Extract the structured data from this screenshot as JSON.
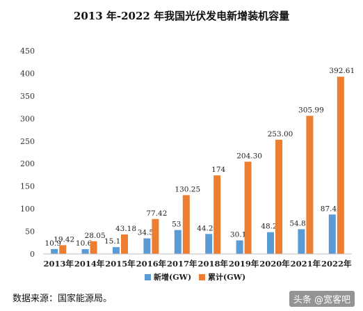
{
  "chart_data": {
    "type": "bar",
    "title": "2013 年-2022 年我国光伏发电新增装机容量",
    "categories": [
      "2013年",
      "2014年",
      "2015年",
      "2016年",
      "2017年",
      "2018年",
      "2019年",
      "2020年",
      "2021年",
      "2022年"
    ],
    "series": [
      {
        "name": "新增(GW)",
        "color": "#5B9BD5",
        "values": [
          10.9,
          10.6,
          15.13,
          34.5,
          53,
          44.26,
          30.1,
          48.2,
          54.88,
          87.41
        ],
        "labels": [
          "10.9",
          "10.6",
          "15.13",
          "34.5",
          "53",
          "44.26",
          "30.1",
          "48.2",
          "54.88",
          "87.41"
        ]
      },
      {
        "name": "累计(GW)",
        "color": "#ED7D31",
        "values": [
          19.42,
          28.05,
          43.18,
          77.42,
          130.25,
          174,
          204.3,
          253.0,
          305.99,
          392.61
        ],
        "labels": [
          "19.42",
          "28.05",
          "43.18",
          "77.42",
          "130.25",
          "174",
          "204.30",
          "253.00",
          "305.99",
          "392.61"
        ]
      }
    ],
    "y_ticks": [
      "0",
      "50",
      "100",
      "150",
      "200",
      "250",
      "300",
      "350",
      "400",
      "450"
    ],
    "ylim": [
      0,
      450
    ],
    "grid": false,
    "legend": "bottom-center"
  },
  "footer": {
    "source": "数据来源：国家能源局。",
    "watermark": "头条 @宽客吧"
  }
}
